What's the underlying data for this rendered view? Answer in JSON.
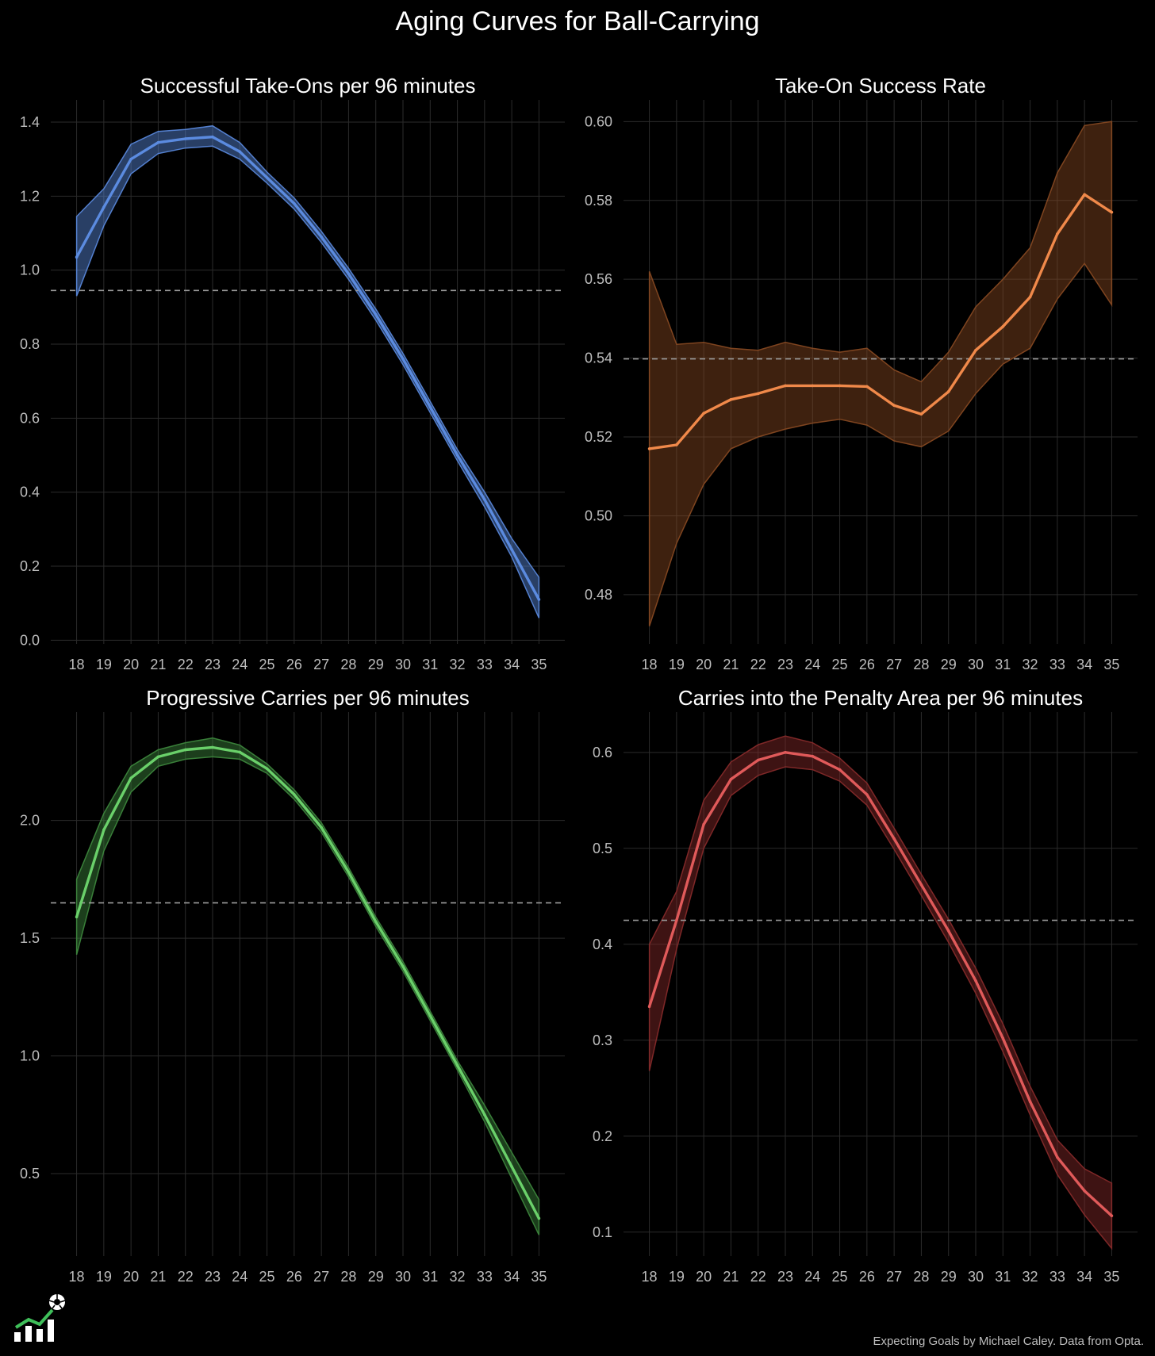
{
  "title": "Aging Curves for Ball-Carrying",
  "credit": "Expecting Goals by Michael Caley. Data from Opta.",
  "logo_icon": "chart-football-logo-icon",
  "chart_data": [
    {
      "type": "line",
      "title": "Successful Take-Ons per 96 minutes",
      "color": "#5b8be0",
      "band_color": "#5b8be0",
      "x": [
        18,
        19,
        20,
        21,
        22,
        23,
        24,
        25,
        26,
        27,
        28,
        29,
        30,
        31,
        32,
        33,
        34,
        35
      ],
      "y": [
        1.035,
        1.17,
        1.3,
        1.345,
        1.355,
        1.36,
        1.32,
        1.25,
        1.18,
        1.09,
        0.99,
        0.88,
        0.76,
        0.63,
        0.5,
        0.38,
        0.245,
        0.11
      ],
      "y_low": [
        0.93,
        1.12,
        1.26,
        1.315,
        1.33,
        1.335,
        1.3,
        1.235,
        1.165,
        1.075,
        0.975,
        0.865,
        0.745,
        0.615,
        0.485,
        0.36,
        0.225,
        0.06
      ],
      "y_high": [
        1.145,
        1.22,
        1.34,
        1.375,
        1.38,
        1.39,
        1.345,
        1.265,
        1.195,
        1.105,
        1.005,
        0.895,
        0.775,
        0.645,
        0.515,
        0.4,
        0.275,
        0.17
      ],
      "reference": 0.945,
      "ylim": [
        -0.01,
        1.46
      ],
      "yticks": [
        "0.0",
        "0.2",
        "0.4",
        "0.6",
        "0.8",
        "1.0",
        "1.2",
        "1.4"
      ]
    },
    {
      "type": "line",
      "title": "Take-On Success Rate",
      "color": "#f0894a",
      "band_color": "#8a4a22",
      "x": [
        18,
        19,
        20,
        21,
        22,
        23,
        24,
        25,
        26,
        27,
        28,
        29,
        30,
        31,
        32,
        33,
        34,
        35
      ],
      "y": [
        0.517,
        0.518,
        0.526,
        0.5295,
        0.531,
        0.533,
        0.533,
        0.533,
        0.5328,
        0.528,
        0.5258,
        0.5315,
        0.542,
        0.548,
        0.5555,
        0.5715,
        0.5815,
        0.577
      ],
      "y_low": [
        0.472,
        0.493,
        0.508,
        0.517,
        0.52,
        0.522,
        0.5235,
        0.5245,
        0.523,
        0.519,
        0.5175,
        0.5215,
        0.531,
        0.5385,
        0.5425,
        0.555,
        0.564,
        0.5535
      ],
      "y_high": [
        0.562,
        0.5435,
        0.544,
        0.5425,
        0.542,
        0.544,
        0.5425,
        0.5415,
        0.5425,
        0.537,
        0.534,
        0.5415,
        0.553,
        0.56,
        0.568,
        0.587,
        0.599,
        0.6
      ],
      "reference": 0.5398,
      "ylim": [
        0.4675,
        0.6055
      ],
      "yticks": [
        "0.48",
        "0.50",
        "0.52",
        "0.54",
        "0.56",
        "0.58",
        "0.60"
      ]
    },
    {
      "type": "line",
      "title": "Progressive Carries per 96 minutes",
      "color": "#6ad06a",
      "band_color": "#3e8a3e",
      "x": [
        18,
        19,
        20,
        21,
        22,
        23,
        24,
        25,
        26,
        27,
        28,
        29,
        30,
        31,
        32,
        33,
        34,
        35
      ],
      "y": [
        1.59,
        1.96,
        2.18,
        2.27,
        2.3,
        2.31,
        2.29,
        2.22,
        2.11,
        1.97,
        1.78,
        1.57,
        1.38,
        1.17,
        0.96,
        0.75,
        0.53,
        0.31
      ],
      "y_low": [
        1.43,
        1.87,
        2.12,
        2.23,
        2.26,
        2.27,
        2.26,
        2.2,
        2.09,
        1.95,
        1.76,
        1.55,
        1.36,
        1.15,
        0.94,
        0.72,
        0.48,
        0.24
      ],
      "y_high": [
        1.75,
        2.03,
        2.23,
        2.3,
        2.33,
        2.35,
        2.32,
        2.24,
        2.13,
        1.99,
        1.8,
        1.59,
        1.4,
        1.19,
        0.98,
        0.79,
        0.59,
        0.39
      ],
      "reference": 1.65,
      "ylim": [
        0.15,
        2.46
      ],
      "yticks": [
        "0.5",
        "1.0",
        "1.5",
        "2.0"
      ]
    },
    {
      "type": "line",
      "title": "Carries into the Penalty Area per 96 minutes",
      "color": "#e05a5a",
      "band_color": "#8a2b2b",
      "x": [
        18,
        19,
        20,
        21,
        22,
        23,
        24,
        25,
        26,
        27,
        28,
        29,
        30,
        31,
        32,
        33,
        34,
        35
      ],
      "y": [
        0.335,
        0.425,
        0.525,
        0.572,
        0.592,
        0.6,
        0.596,
        0.582,
        0.556,
        0.51,
        0.462,
        0.414,
        0.362,
        0.302,
        0.236,
        0.178,
        0.143,
        0.117
      ],
      "y_low": [
        0.268,
        0.395,
        0.5,
        0.555,
        0.576,
        0.585,
        0.582,
        0.57,
        0.545,
        0.499,
        0.451,
        0.402,
        0.349,
        0.288,
        0.222,
        0.16,
        0.118,
        0.083
      ],
      "y_high": [
        0.4,
        0.455,
        0.55,
        0.59,
        0.608,
        0.617,
        0.61,
        0.594,
        0.568,
        0.521,
        0.473,
        0.426,
        0.375,
        0.317,
        0.252,
        0.196,
        0.166,
        0.151
      ],
      "reference": 0.425,
      "ylim": [
        0.075,
        0.642
      ],
      "yticks": [
        "0.1",
        "0.2",
        "0.3",
        "0.4",
        "0.5",
        "0.6"
      ]
    }
  ]
}
